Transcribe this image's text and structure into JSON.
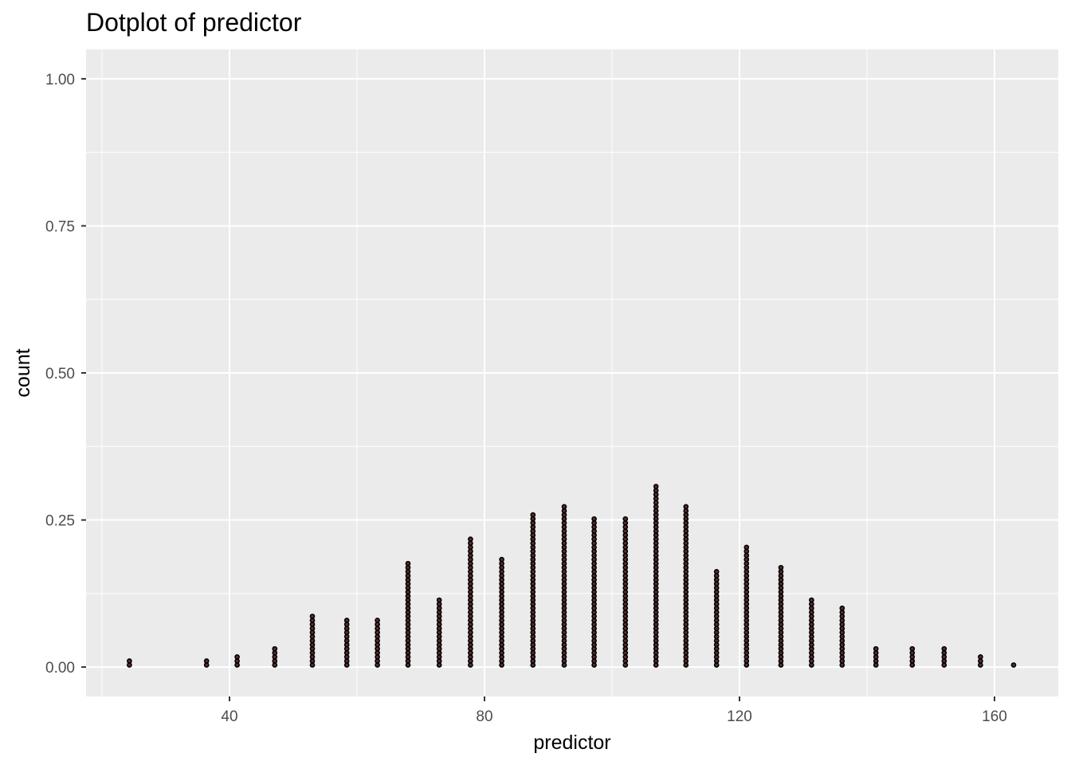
{
  "chart_data": {
    "type": "scatter",
    "subtype": "dotplot",
    "title": "Dotplot of predictor",
    "xlabel": "predictor",
    "ylabel": "count",
    "xlim": [
      17.5,
      170
    ],
    "ylim": [
      -0.05,
      1.05
    ],
    "x_ticks": [
      40,
      80,
      120,
      160
    ],
    "x_tick_labels": [
      "40",
      "80",
      "120",
      "160"
    ],
    "y_ticks": [
      0.0,
      0.25,
      0.5,
      0.75,
      1.0
    ],
    "y_tick_labels": [
      "0.00",
      "0.25",
      "0.50",
      "0.75",
      "1.00"
    ],
    "grid": true,
    "background": "#ebebeb",
    "grid_color": "#ffffff",
    "dot_color": "#000000",
    "dot_fill": "#5a2d2d",
    "stack_unit": 0.0069,
    "stacks": [
      {
        "x": 24.3,
        "count": 2
      },
      {
        "x": 36.4,
        "count": 2
      },
      {
        "x": 41.2,
        "count": 3
      },
      {
        "x": 47.1,
        "count": 5
      },
      {
        "x": 53.0,
        "count": 13
      },
      {
        "x": 58.4,
        "count": 12
      },
      {
        "x": 63.2,
        "count": 12
      },
      {
        "x": 68.0,
        "count": 26
      },
      {
        "x": 72.9,
        "count": 17
      },
      {
        "x": 77.8,
        "count": 32
      },
      {
        "x": 82.7,
        "count": 27
      },
      {
        "x": 87.6,
        "count": 38
      },
      {
        "x": 92.5,
        "count": 40
      },
      {
        "x": 97.2,
        "count": 37
      },
      {
        "x": 102.1,
        "count": 37
      },
      {
        "x": 106.9,
        "count": 45
      },
      {
        "x": 111.6,
        "count": 40
      },
      {
        "x": 116.4,
        "count": 24
      },
      {
        "x": 121.1,
        "count": 30
      },
      {
        "x": 126.5,
        "count": 25
      },
      {
        "x": 131.3,
        "count": 17
      },
      {
        "x": 136.1,
        "count": 15
      },
      {
        "x": 141.4,
        "count": 5
      },
      {
        "x": 147.1,
        "count": 5
      },
      {
        "x": 152.1,
        "count": 5
      },
      {
        "x": 157.8,
        "count": 3
      },
      {
        "x": 163.0,
        "count": 1
      }
    ]
  }
}
